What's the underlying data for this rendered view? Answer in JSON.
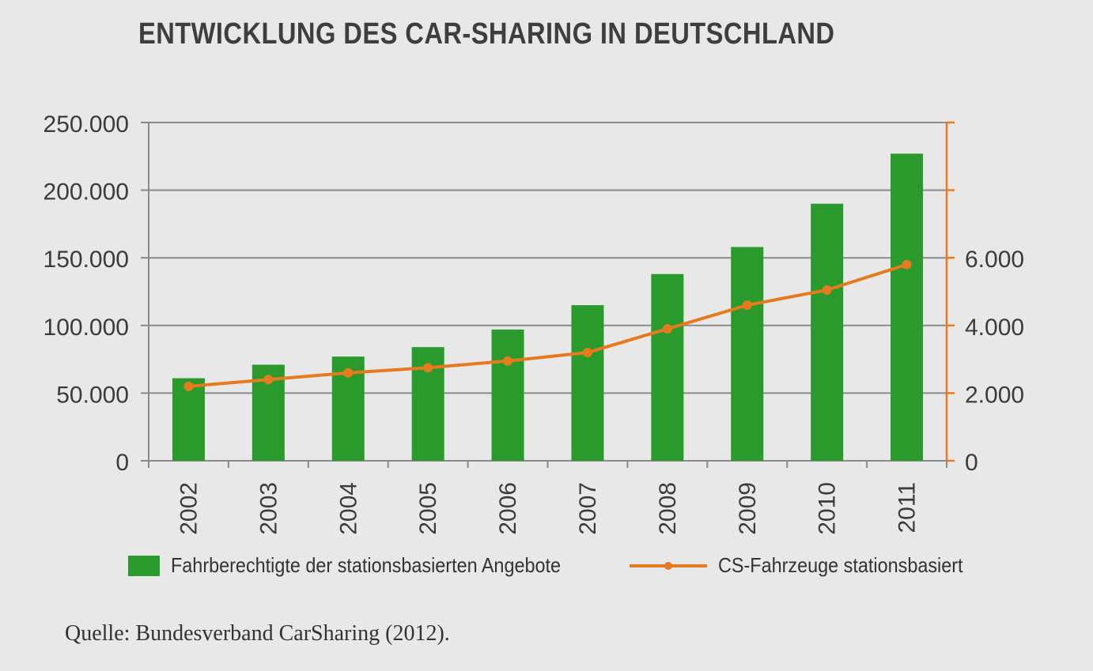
{
  "chart_data": {
    "type": "bar",
    "title": "ENTWICKLUNG DES CAR-SHARING IN DEUTSCHLAND",
    "categories": [
      "2002",
      "2003",
      "2004",
      "2005",
      "2006",
      "2007",
      "2008",
      "2009",
      "2010",
      "2011"
    ],
    "series": [
      {
        "name": "Fahrberechtigte der stationsbasierten Angebote",
        "type": "bar",
        "axis": "left",
        "color": "#2a9a2d",
        "values": [
          61000,
          71000,
          77000,
          84000,
          97000,
          115000,
          138000,
          158000,
          190000,
          227000
        ]
      },
      {
        "name": "CS-Fahrzeuge stationsbasiert",
        "type": "line",
        "axis": "right",
        "color": "#e57b1e",
        "values": [
          2200,
          2400,
          2600,
          2750,
          2950,
          3200,
          3900,
          4600,
          5050,
          5800
        ]
      }
    ],
    "left_axis": {
      "ylim": [
        0,
        250000
      ],
      "ticks": [
        0,
        50000,
        100000,
        150000,
        200000,
        250000
      ],
      "tick_labels": [
        "0",
        "50.000",
        "100.000",
        "150.000",
        "200.000",
        "250.000"
      ]
    },
    "right_axis": {
      "ylim": [
        0,
        10000
      ],
      "ticks": [
        0,
        2000,
        4000,
        6000
      ],
      "tick_labels": [
        "0",
        "2.000",
        "4.000",
        "6.000"
      ],
      "extra_tick_marks": [
        8000,
        10000
      ]
    },
    "grid": true,
    "legend_position": "bottom",
    "x_tick_rotation": "vertical"
  },
  "source": "Quelle: Bundesverband CarSharing (2012)."
}
